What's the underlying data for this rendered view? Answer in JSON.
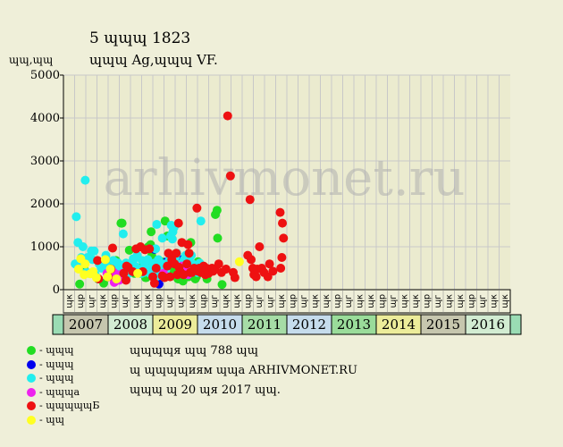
{
  "header": {
    "title": "5 ɰɰɰ 1823",
    "subtitle": "ɰɰɰ Ag,ɰɰɰ VF.",
    "y_unit": "ɰɰ,ɰɰ"
  },
  "legend": [
    {
      "label": "- ɰɰɰ",
      "color": "#22dd22"
    },
    {
      "label": "- ɰɰɰ",
      "color": "#0000ee"
    },
    {
      "label": "- ɰɰɰ",
      "color": "#22eeee"
    },
    {
      "label": "- ɰɰɰa",
      "color": "#ee22ee"
    },
    {
      "label": "- ɰɰɰɰɰБ",
      "color": "#ee1111"
    },
    {
      "label": "- ɰɰ",
      "color": "#ffff22"
    }
  ],
  "notes": [
    "ɰɰɰɰя ɰɰ 788 ɰɰ",
    "ɰ ɰɰɰɰиям ɰɰa ARHIVMONET.RU",
    "ɰɰɰ ɰ 20 ɰя 2017 ɰɰ."
  ],
  "watermark": "arhivmonet.ru",
  "chart_data": {
    "type": "scatter",
    "ylim": [
      0,
      5000
    ],
    "yticks": [
      0,
      1000,
      2000,
      3000,
      4000,
      5000
    ],
    "grid": true,
    "years": [
      {
        "label": "2007",
        "color": "#c6c6ae",
        "subs": [
          "ɰк",
          "ɰр",
          "ɰг",
          "ɰк"
        ]
      },
      {
        "label": "2008",
        "color": "#d2ecd2",
        "subs": [
          "ɰр",
          "ɰг",
          "ɰк",
          "ɰк"
        ]
      },
      {
        "label": "2009",
        "color": "#ecec9a",
        "subs": [
          "ɰр",
          "ɰг",
          "ɰг",
          "ɰк"
        ]
      },
      {
        "label": "2010",
        "color": "#c6dcec",
        "subs": [
          "ɰр",
          "ɰг",
          "ɰк",
          "ɰк"
        ]
      },
      {
        "label": "2011",
        "color": "#a6dca6",
        "subs": [
          "ɰр",
          "ɰг",
          "ɰг",
          "ɰк"
        ]
      },
      {
        "label": "2012",
        "color": "#c6dcec",
        "subs": [
          "ɰр",
          "ɰг",
          "ɰк",
          "ɰк"
        ]
      },
      {
        "label": "2013",
        "color": "#9adc9a",
        "subs": [
          "ɰр",
          "ɰг",
          "ɰк",
          "ɰк"
        ]
      },
      {
        "label": "2014",
        "color": "#ecec9a",
        "subs": [
          "ɰр",
          "ɰг",
          "ɰк",
          "ɰк"
        ]
      },
      {
        "label": "2015",
        "color": "#c6c6ae",
        "subs": [
          "ɰр",
          "ɰг",
          "ɰк",
          "ɰк"
        ]
      },
      {
        "label": "2016",
        "color": "#d2ecd2",
        "subs": [
          "ɰр",
          "ɰг",
          "ɰк",
          "ɰк"
        ]
      }
    ],
    "x_start_label": "",
    "x_unit": "quarters since 2006-Q4",
    "series": [
      {
        "name": "- ɰɰɰ",
        "color": "#22dd22",
        "points": [
          [
            1.45,
            130
          ],
          [
            1.9,
            450
          ],
          [
            3.1,
            250
          ],
          [
            3.6,
            150
          ],
          [
            4.1,
            450
          ],
          [
            4.35,
            600
          ],
          [
            4.7,
            680
          ],
          [
            5.15,
            1550
          ],
          [
            5.25,
            1550
          ],
          [
            5.55,
            350
          ],
          [
            5.9,
            920
          ],
          [
            6.35,
            380
          ],
          [
            6.9,
            380
          ],
          [
            7.15,
            620
          ],
          [
            7.35,
            280
          ],
          [
            7.4,
            280
          ],
          [
            7.5,
            600
          ],
          [
            7.6,
            1000
          ],
          [
            7.8,
            1050
          ],
          [
            7.85,
            1350
          ],
          [
            7.9,
            800
          ],
          [
            8.05,
            520
          ],
          [
            8.1,
            700
          ],
          [
            8.2,
            200
          ],
          [
            8.35,
            600
          ],
          [
            8.6,
            600
          ],
          [
            8.8,
            650
          ],
          [
            8.9,
            520
          ],
          [
            9.1,
            1600
          ],
          [
            9.3,
            1250
          ],
          [
            9.4,
            500
          ],
          [
            9.7,
            600
          ],
          [
            9.85,
            350
          ],
          [
            10.1,
            450
          ],
          [
            10.25,
            250
          ],
          [
            10.3,
            250
          ],
          [
            10.55,
            400
          ],
          [
            10.7,
            200
          ],
          [
            10.95,
            350
          ],
          [
            11.2,
            300
          ],
          [
            11.4,
            1100
          ],
          [
            11.55,
            380
          ],
          [
            11.8,
            250
          ],
          [
            11.9,
            300
          ],
          [
            12.05,
            650
          ],
          [
            12.85,
            250
          ],
          [
            13.6,
            1750
          ],
          [
            13.75,
            1850
          ],
          [
            13.8,
            1200
          ],
          [
            14.2,
            120
          ]
        ]
      },
      {
        "name": "- ɰɰɰ",
        "color": "#0000ee",
        "points": [
          [
            8.15,
            940
          ],
          [
            8.55,
            130
          ],
          [
            9.25,
            650
          ],
          [
            10.45,
            700
          ]
        ]
      },
      {
        "name": "- ɰɰɰ",
        "color": "#22eeee",
        "points": [
          [
            1.05,
            600
          ],
          [
            1.15,
            1700
          ],
          [
            1.3,
            1100
          ],
          [
            1.45,
            600
          ],
          [
            1.6,
            750
          ],
          [
            1.65,
            600
          ],
          [
            1.75,
            1000
          ],
          [
            1.95,
            2550
          ],
          [
            2.05,
            400
          ],
          [
            2.15,
            750
          ],
          [
            2.3,
            380
          ],
          [
            2.5,
            900
          ],
          [
            2.6,
            700
          ],
          [
            2.75,
            900
          ],
          [
            2.85,
            350
          ],
          [
            3.2,
            600
          ],
          [
            3.4,
            500
          ],
          [
            3.65,
            600
          ],
          [
            3.8,
            800
          ],
          [
            3.85,
            550
          ],
          [
            4.05,
            350
          ],
          [
            4.3,
            400
          ],
          [
            4.45,
            680
          ],
          [
            4.6,
            650
          ],
          [
            4.85,
            480
          ],
          [
            4.9,
            620
          ],
          [
            5.0,
            320
          ],
          [
            5.05,
            580
          ],
          [
            5.15,
            480
          ],
          [
            5.35,
            1300
          ],
          [
            5.6,
            620
          ],
          [
            5.75,
            550
          ],
          [
            5.85,
            380
          ],
          [
            6.05,
            550
          ],
          [
            6.25,
            720
          ],
          [
            6.4,
            550
          ],
          [
            6.55,
            750
          ],
          [
            6.6,
            800
          ],
          [
            6.8,
            480
          ],
          [
            7.0,
            380
          ],
          [
            7.05,
            680
          ],
          [
            7.2,
            400
          ],
          [
            7.3,
            550
          ],
          [
            7.55,
            700
          ],
          [
            7.75,
            380
          ],
          [
            7.95,
            530
          ],
          [
            8.15,
            620
          ],
          [
            8.25,
            950
          ],
          [
            8.3,
            300
          ],
          [
            8.35,
            1520
          ],
          [
            8.5,
            700
          ],
          [
            8.65,
            450
          ],
          [
            8.7,
            600
          ],
          [
            8.85,
            1200
          ],
          [
            9.0,
            600
          ],
          [
            9.15,
            450
          ],
          [
            9.5,
            700
          ],
          [
            9.6,
            1250
          ],
          [
            9.65,
            1500
          ],
          [
            9.75,
            1180
          ],
          [
            9.8,
            1350
          ],
          [
            9.9,
            1450
          ],
          [
            10.0,
            750
          ],
          [
            10.15,
            850
          ],
          [
            10.4,
            500
          ],
          [
            10.5,
            600
          ],
          [
            10.75,
            550
          ],
          [
            10.8,
            700
          ],
          [
            10.85,
            450
          ],
          [
            10.95,
            800
          ],
          [
            11.1,
            600
          ],
          [
            11.3,
            750
          ],
          [
            11.45,
            800
          ],
          [
            11.55,
            600
          ],
          [
            11.7,
            500
          ],
          [
            12.0,
            400
          ],
          [
            12.2,
            620
          ],
          [
            12.3,
            1600
          ]
        ]
      },
      {
        "name": "- ɰɰɰa",
        "color": "#ee22ee",
        "points": [
          [
            3.9,
            380
          ],
          [
            4.5,
            400
          ],
          [
            4.55,
            170
          ],
          [
            4.65,
            250
          ],
          [
            4.75,
            300
          ],
          [
            4.85,
            350
          ],
          [
            5.0,
            220
          ],
          [
            5.3,
            380
          ],
          [
            8.95,
            380
          ],
          [
            10.6,
            550
          ],
          [
            11.05,
            450
          ],
          [
            11.15,
            350
          ]
        ]
      },
      {
        "name": "- ɰɰɰɰɰБ",
        "color": "#ee1111",
        "points": [
          [
            3.05,
            680
          ],
          [
            3.15,
            250
          ],
          [
            4.0,
            300
          ],
          [
            4.25,
            480
          ],
          [
            4.4,
            970
          ],
          [
            5.4,
            380
          ],
          [
            5.6,
            220
          ],
          [
            5.65,
            550
          ],
          [
            5.8,
            520
          ],
          [
            6.2,
            420
          ],
          [
            6.5,
            950
          ],
          [
            6.9,
            1000
          ],
          [
            7.1,
            420
          ],
          [
            7.3,
            930
          ],
          [
            7.7,
            950
          ],
          [
            8.0,
            300
          ],
          [
            8.15,
            150
          ],
          [
            8.3,
            500
          ],
          [
            8.85,
            320
          ],
          [
            9.05,
            280
          ],
          [
            9.3,
            550
          ],
          [
            9.4,
            850
          ],
          [
            9.55,
            300
          ],
          [
            9.7,
            700
          ],
          [
            9.95,
            600
          ],
          [
            10.1,
            850
          ],
          [
            10.2,
            350
          ],
          [
            10.3,
            1550
          ],
          [
            10.35,
            520
          ],
          [
            10.5,
            400
          ],
          [
            10.6,
            1100
          ],
          [
            10.75,
            350
          ],
          [
            11.05,
            600
          ],
          [
            11.15,
            1050
          ],
          [
            11.25,
            850
          ],
          [
            11.35,
            400
          ],
          [
            11.5,
            400
          ],
          [
            11.7,
            500
          ],
          [
            11.95,
            1900
          ],
          [
            12.05,
            430
          ],
          [
            12.15,
            500
          ],
          [
            12.3,
            400
          ],
          [
            12.55,
            550
          ],
          [
            12.6,
            400
          ],
          [
            12.7,
            350
          ],
          [
            12.8,
            500
          ],
          [
            13.0,
            380
          ],
          [
            13.15,
            450
          ],
          [
            13.3,
            500
          ],
          [
            13.4,
            430
          ],
          [
            13.55,
            480
          ],
          [
            13.9,
            600
          ],
          [
            14.15,
            400
          ],
          [
            14.55,
            480
          ],
          [
            14.7,
            4050
          ],
          [
            14.95,
            2650
          ],
          [
            15.2,
            400
          ],
          [
            15.35,
            280
          ],
          [
            16.5,
            800
          ],
          [
            16.7,
            2100
          ],
          [
            16.8,
            700
          ],
          [
            16.95,
            500
          ],
          [
            17.05,
            350
          ],
          [
            17.25,
            300
          ],
          [
            17.35,
            480
          ],
          [
            17.55,
            1000
          ],
          [
            17.75,
            500
          ],
          [
            17.95,
            400
          ],
          [
            18.3,
            300
          ],
          [
            18.45,
            600
          ],
          [
            18.75,
            430
          ],
          [
            19.4,
            1800
          ],
          [
            19.45,
            500
          ],
          [
            19.55,
            750
          ],
          [
            19.6,
            1550
          ],
          [
            19.7,
            1200
          ]
        ]
      },
      {
        "name": "- ɰɰ",
        "color": "#ffff22",
        "points": [
          [
            1.35,
            480
          ],
          [
            1.55,
            720
          ],
          [
            1.85,
            350
          ],
          [
            1.95,
            600
          ],
          [
            2.4,
            370
          ],
          [
            2.65,
            420
          ],
          [
            2.95,
            280
          ],
          [
            3.75,
            700
          ],
          [
            3.95,
            300
          ],
          [
            4.2,
            480
          ],
          [
            4.75,
            250
          ],
          [
            6.65,
            380
          ],
          [
            15.75,
            650
          ]
        ]
      }
    ]
  }
}
